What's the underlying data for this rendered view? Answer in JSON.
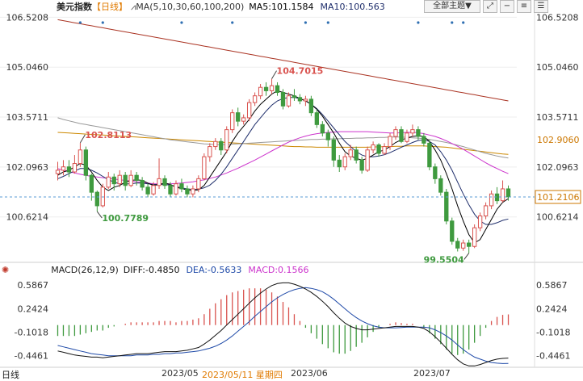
{
  "header": {
    "title": "美元指数",
    "period_tag": "【日线】",
    "ma_label": "MA(5,10,30,60,100,200)",
    "ma5_label": "MA5:101.1584",
    "ma10_label": "MA10:100.563",
    "topic_select": "全部主题▼",
    "icons": [
      "fullscreen-icon",
      "minimize-icon",
      "list-icon",
      "menu-icon"
    ]
  },
  "colors": {
    "up": "#d9534f",
    "down": "#3f9a3f",
    "ma5": "#000000",
    "ma10": "#1f2e6b",
    "ma30": "#cc33cc",
    "ma60": "#999999",
    "ma100": "#cc8800",
    "ma200": "#aa3322",
    "diff": "#111111",
    "dea": "#1f4aa8",
    "macd_pos": "#d9534f",
    "macd_neg": "#3f9a3f",
    "last_price": "#cc7700"
  },
  "macd_header": {
    "label": "MACD(26,12,9)",
    "diff": "DIFF:-0.4850",
    "dea": "DEA:-0.5633",
    "macd": "MACD:0.1566"
  },
  "footer": {
    "period": "日线",
    "date1": "2023/05",
    "cursor_date": "2023/05/11 星期四",
    "date2": "2023/06",
    "date3": "2023/07"
  },
  "chart_data": [
    {
      "type": "candlestick",
      "title": "美元指数",
      "ylim": [
        99.35,
        106.65
      ],
      "y_ticks": [
        "106.5208",
        "105.0460",
        "103.5711",
        "102.0963",
        "100.6214"
      ],
      "y_tick_values": [
        106.5208,
        105.046,
        103.5711,
        102.0963,
        100.6214
      ],
      "annotations": [
        {
          "text": "104.7015",
          "value": 104.7015,
          "kind": "high"
        },
        {
          "text": "102.8113",
          "value": 102.8113,
          "kind": "high"
        },
        {
          "text": "100.7789",
          "value": 100.7789,
          "kind": "low"
        },
        {
          "text": "99.5504",
          "value": 99.5504,
          "kind": "low"
        }
      ],
      "right_labels": [
        {
          "text": "102.9060",
          "value": 102.906
        },
        {
          "text": "101.2106",
          "value": 101.2106,
          "last_price": true
        }
      ],
      "candles": [
        [
          101.9,
          102.0,
          101.7,
          102.25
        ],
        [
          102.0,
          102.1,
          101.85,
          102.3
        ],
        [
          102.1,
          101.95,
          101.8,
          102.3
        ],
        [
          101.95,
          102.2,
          101.9,
          102.45
        ],
        [
          102.2,
          102.6,
          102.1,
          102.8113
        ],
        [
          102.6,
          101.85,
          101.7,
          102.7
        ],
        [
          101.85,
          101.35,
          101.1,
          101.9
        ],
        [
          101.35,
          100.95,
          100.7789,
          101.4
        ],
        [
          100.95,
          101.5,
          100.9,
          101.6
        ],
        [
          101.5,
          101.8,
          101.45,
          101.95
        ],
        [
          101.8,
          101.6,
          101.4,
          101.9
        ],
        [
          101.6,
          101.85,
          101.5,
          102.0
        ],
        [
          101.85,
          101.55,
          101.4,
          101.95
        ],
        [
          101.55,
          101.85,
          101.5,
          102.0
        ],
        [
          101.85,
          101.7,
          101.55,
          101.95
        ],
        [
          101.7,
          101.5,
          101.4,
          101.8
        ],
        [
          101.5,
          101.3,
          101.2,
          101.6
        ],
        [
          101.3,
          101.55,
          101.25,
          101.65
        ],
        [
          101.55,
          101.75,
          101.45,
          102.35
        ],
        [
          101.75,
          101.55,
          101.45,
          101.85
        ],
        [
          101.55,
          101.3,
          101.2,
          101.65
        ],
        [
          101.3,
          101.6,
          101.25,
          101.7
        ],
        [
          101.6,
          101.45,
          101.35,
          101.75
        ],
        [
          101.45,
          101.3,
          101.2,
          101.55
        ],
        [
          101.3,
          101.45,
          101.2,
          101.55
        ],
        [
          101.45,
          101.75,
          101.35,
          101.85
        ],
        [
          101.75,
          102.4,
          101.7,
          102.5
        ],
        [
          102.4,
          102.7,
          102.25,
          102.8
        ],
        [
          102.7,
          102.85,
          102.6,
          102.95
        ],
        [
          102.85,
          102.6,
          102.45,
          102.95
        ],
        [
          102.6,
          103.2,
          102.5,
          103.3
        ],
        [
          103.2,
          103.7,
          103.1,
          103.8
        ],
        [
          103.7,
          103.45,
          103.3,
          103.85
        ],
        [
          103.45,
          103.55,
          103.35,
          103.65
        ],
        [
          103.55,
          104.0,
          103.45,
          104.1
        ],
        [
          104.0,
          104.2,
          103.9,
          104.3
        ],
        [
          104.2,
          104.45,
          104.1,
          104.55
        ],
        [
          104.45,
          104.35,
          104.2,
          104.6
        ],
        [
          104.35,
          104.5,
          104.25,
          104.7015
        ],
        [
          104.5,
          104.3,
          104.2,
          104.6
        ],
        [
          104.3,
          103.9,
          103.8,
          104.4
        ],
        [
          103.9,
          104.2,
          103.85,
          104.3
        ],
        [
          104.2,
          104.15,
          104.05,
          104.4
        ],
        [
          104.15,
          104.05,
          103.95,
          104.25
        ],
        [
          104.05,
          104.1,
          103.9,
          104.2
        ],
        [
          104.1,
          103.7,
          103.6,
          104.2
        ],
        [
          103.7,
          103.35,
          103.25,
          103.8
        ],
        [
          103.35,
          103.1,
          103.0,
          103.45
        ],
        [
          103.1,
          102.9,
          102.7,
          103.2
        ],
        [
          102.9,
          102.3,
          102.1,
          103.0
        ],
        [
          102.3,
          102.1,
          101.95,
          102.45
        ],
        [
          102.1,
          102.4,
          102.0,
          102.5
        ],
        [
          102.4,
          102.6,
          102.3,
          102.75
        ],
        [
          102.6,
          102.3,
          102.2,
          102.7
        ],
        [
          102.3,
          102.0,
          101.9,
          102.4
        ],
        [
          102.0,
          102.6,
          101.95,
          102.7
        ],
        [
          102.6,
          102.75,
          102.5,
          102.85
        ],
        [
          102.75,
          102.5,
          102.4,
          102.8
        ],
        [
          102.5,
          102.7,
          102.45,
          102.8
        ],
        [
          102.7,
          103.0,
          102.6,
          103.1
        ],
        [
          103.0,
          103.2,
          102.9,
          103.3
        ],
        [
          103.2,
          102.85,
          102.8,
          103.3
        ],
        [
          102.85,
          103.1,
          102.8,
          103.2
        ],
        [
          103.1,
          103.2,
          103.0,
          103.35
        ],
        [
          103.2,
          103.0,
          102.9,
          103.3
        ],
        [
          103.0,
          102.8,
          102.7,
          103.1
        ],
        [
          102.8,
          102.1,
          102.0,
          102.9
        ],
        [
          102.1,
          101.75,
          101.6,
          102.2
        ],
        [
          101.75,
          101.35,
          101.25,
          101.85
        ],
        [
          101.35,
          100.5,
          100.4,
          101.45
        ],
        [
          100.5,
          99.9,
          99.8,
          100.6
        ],
        [
          99.9,
          99.7,
          99.6,
          100.0
        ],
        [
          99.7,
          99.85,
          99.62,
          99.95
        ],
        [
          99.85,
          99.75,
          99.5504,
          99.95
        ],
        [
          99.75,
          100.3,
          99.7,
          100.4
        ],
        [
          100.3,
          100.65,
          100.2,
          100.75
        ],
        [
          100.65,
          100.95,
          100.55,
          101.05
        ],
        [
          100.95,
          101.3,
          100.85,
          101.4
        ],
        [
          101.3,
          101.1,
          101.0,
          101.5
        ],
        [
          101.1,
          101.45,
          101.05,
          101.7
        ],
        [
          101.45,
          101.2106,
          101.1,
          101.55
        ]
      ],
      "ma5": [
        101.85,
        101.95,
        102.0,
        102.1,
        102.2,
        102.15,
        101.95,
        101.7,
        101.5,
        101.4,
        101.5,
        101.55,
        101.65,
        101.7,
        101.72,
        101.7,
        101.62,
        101.55,
        101.58,
        101.62,
        101.58,
        101.5,
        101.46,
        101.42,
        101.4,
        101.42,
        101.55,
        101.8,
        102.05,
        102.3,
        102.55,
        102.85,
        103.1,
        103.3,
        103.5,
        103.75,
        103.95,
        104.1,
        104.25,
        104.35,
        104.3,
        104.25,
        104.2,
        104.12,
        104.05,
        103.95,
        103.8,
        103.6,
        103.35,
        103.1,
        102.8,
        102.55,
        102.42,
        102.35,
        102.3,
        102.35,
        102.45,
        102.55,
        102.6,
        102.7,
        102.82,
        102.9,
        102.95,
        103.0,
        103.02,
        103.0,
        102.85,
        102.6,
        102.3,
        101.9,
        101.45,
        100.95,
        100.5,
        100.1,
        99.85,
        99.95,
        100.25,
        100.55,
        100.85,
        101.05,
        101.16
      ],
      "ma10": [
        101.75,
        101.82,
        101.9,
        101.98,
        102.05,
        102.05,
        102.0,
        101.92,
        101.82,
        101.72,
        101.65,
        101.6,
        101.6,
        101.6,
        101.62,
        101.62,
        101.6,
        101.58,
        101.58,
        101.58,
        101.56,
        101.52,
        101.48,
        101.45,
        101.43,
        101.44,
        101.48,
        101.56,
        101.7,
        101.88,
        102.1,
        102.35,
        102.6,
        102.85,
        103.1,
        103.35,
        103.55,
        103.75,
        103.92,
        104.05,
        104.12,
        104.15,
        104.15,
        104.12,
        104.05,
        103.95,
        103.82,
        103.65,
        103.45,
        103.25,
        103.05,
        102.85,
        102.7,
        102.55,
        102.45,
        102.4,
        102.4,
        102.42,
        102.46,
        102.52,
        102.6,
        102.68,
        102.75,
        102.82,
        102.88,
        102.9,
        102.85,
        102.75,
        102.55,
        102.3,
        102.0,
        101.65,
        101.3,
        100.98,
        100.7,
        100.5,
        100.4,
        100.4,
        100.45,
        100.52,
        100.56
      ],
      "ma30": [
        102.05,
        102.0,
        101.96,
        101.92,
        101.88,
        101.85,
        101.82,
        101.8,
        101.78,
        101.76,
        101.74,
        101.72,
        101.7,
        101.68,
        101.66,
        101.64,
        101.62,
        101.6,
        101.6,
        101.6,
        101.6,
        101.61,
        101.62,
        101.64,
        101.66,
        101.69,
        101.72,
        101.76,
        101.8,
        101.86,
        101.92,
        101.99,
        102.06,
        102.14,
        102.22,
        102.3,
        102.39,
        102.48,
        102.57,
        102.66,
        102.75,
        102.83,
        102.9,
        102.96,
        103.01,
        103.05,
        103.08,
        103.1,
        103.12,
        103.13,
        103.14,
        103.14,
        103.14,
        103.14,
        103.14,
        103.14,
        103.13,
        103.12,
        103.11,
        103.1,
        103.1,
        103.11,
        103.12,
        103.12,
        103.11,
        103.08,
        103.04,
        103.0,
        102.94,
        102.87,
        102.79,
        102.71,
        102.62,
        102.52,
        102.42,
        102.32,
        102.22,
        102.13,
        102.05,
        101.97,
        101.9
      ],
      "ma60": [
        103.55,
        103.5,
        103.46,
        103.42,
        103.38,
        103.35,
        103.32,
        103.29,
        103.26,
        103.23,
        103.2,
        103.17,
        103.14,
        103.11,
        103.08,
        103.05,
        103.02,
        102.99,
        102.96,
        102.93,
        102.9,
        102.88,
        102.86,
        102.84,
        102.82,
        102.8,
        102.78,
        102.77,
        102.76,
        102.76,
        102.76,
        102.77,
        102.78,
        102.79,
        102.8,
        102.81,
        102.82,
        102.83,
        102.84,
        102.85,
        102.86,
        102.87,
        102.88,
        102.89,
        102.9,
        102.91,
        102.91,
        102.92,
        102.92,
        102.93,
        102.93,
        102.94,
        102.94,
        102.95,
        102.95,
        102.96,
        102.96,
        102.97,
        102.97,
        102.98,
        102.98,
        102.98,
        102.97,
        102.96,
        102.95,
        102.93,
        102.91,
        102.88,
        102.85,
        102.82,
        102.78,
        102.74,
        102.7,
        102.65,
        102.6,
        102.55,
        102.5,
        102.46,
        102.42,
        102.39,
        102.36
      ],
      "ma100": [
        103.12,
        103.11,
        103.1,
        103.09,
        103.08,
        103.07,
        103.06,
        103.05,
        103.04,
        103.03,
        103.02,
        103.01,
        103.0,
        102.99,
        102.98,
        102.97,
        102.96,
        102.95,
        102.94,
        102.93,
        102.92,
        102.91,
        102.9,
        102.89,
        102.88,
        102.87,
        102.86,
        102.85,
        102.84,
        102.83,
        102.82,
        102.81,
        102.8,
        102.79,
        102.78,
        102.77,
        102.76,
        102.75,
        102.74,
        102.73,
        102.72,
        102.71,
        102.7,
        102.7,
        102.69,
        102.69,
        102.68,
        102.68,
        102.68,
        102.68,
        102.68,
        102.68,
        102.68,
        102.68,
        102.68,
        102.68,
        102.69,
        102.69,
        102.7,
        102.7,
        102.71,
        102.71,
        102.72,
        102.72,
        102.72,
        102.72,
        102.71,
        102.7,
        102.69,
        102.68,
        102.66,
        102.64,
        102.62,
        102.6,
        102.58,
        102.56,
        102.54,
        102.52,
        102.5,
        102.48,
        102.47
      ],
      "ma200": [
        106.45,
        106.42,
        106.39,
        106.36,
        106.33,
        106.3,
        106.27,
        106.24,
        106.21,
        106.18,
        106.15,
        106.12,
        106.09,
        106.06,
        106.03,
        106.0,
        105.97,
        105.94,
        105.91,
        105.88,
        105.85,
        105.82,
        105.79,
        105.76,
        105.73,
        105.7,
        105.67,
        105.64,
        105.61,
        105.58,
        105.55,
        105.52,
        105.49,
        105.46,
        105.43,
        105.4,
        105.37,
        105.34,
        105.31,
        105.28,
        105.25,
        105.22,
        105.19,
        105.16,
        105.13,
        105.1,
        105.07,
        105.04,
        105.01,
        104.98,
        104.95,
        104.92,
        104.89,
        104.86,
        104.83,
        104.8,
        104.77,
        104.74,
        104.71,
        104.68,
        104.65,
        104.62,
        104.59,
        104.56,
        104.53,
        104.5,
        104.47,
        104.44,
        104.41,
        104.38,
        104.35,
        104.32,
        104.29,
        104.26,
        104.23,
        104.2,
        104.17,
        104.14,
        104.11,
        104.08,
        104.05
      ]
    },
    {
      "type": "macd",
      "title": "MACD(26,12,9)",
      "ylim": [
        -0.62,
        0.72
      ],
      "y_ticks": [
        "0.5867",
        "0.2424",
        "-0.1018",
        "-0.4461"
      ],
      "y_tick_values": [
        0.5867,
        0.2424,
        -0.1018,
        -0.4461
      ],
      "diff": [
        -0.38,
        -0.4,
        -0.42,
        -0.44,
        -0.45,
        -0.46,
        -0.47,
        -0.47,
        -0.48,
        -0.47,
        -0.46,
        -0.45,
        -0.44,
        -0.43,
        -0.42,
        -0.42,
        -0.42,
        -0.41,
        -0.4,
        -0.39,
        -0.39,
        -0.39,
        -0.38,
        -0.37,
        -0.35,
        -0.33,
        -0.28,
        -0.22,
        -0.15,
        -0.08,
        0.0,
        0.08,
        0.16,
        0.24,
        0.32,
        0.4,
        0.47,
        0.53,
        0.58,
        0.61,
        0.62,
        0.62,
        0.6,
        0.57,
        0.53,
        0.48,
        0.42,
        0.35,
        0.27,
        0.18,
        0.1,
        0.03,
        -0.02,
        -0.05,
        -0.07,
        -0.07,
        -0.06,
        -0.05,
        -0.04,
        -0.03,
        -0.02,
        -0.02,
        -0.02,
        -0.02,
        -0.03,
        -0.05,
        -0.1,
        -0.17,
        -0.25,
        -0.34,
        -0.43,
        -0.51,
        -0.57,
        -0.6,
        -0.6,
        -0.58,
        -0.55,
        -0.52,
        -0.5,
        -0.49,
        -0.485
      ],
      "dea": [
        -0.3,
        -0.32,
        -0.34,
        -0.36,
        -0.38,
        -0.4,
        -0.42,
        -0.43,
        -0.44,
        -0.45,
        -0.45,
        -0.45,
        -0.45,
        -0.45,
        -0.44,
        -0.44,
        -0.44,
        -0.43,
        -0.43,
        -0.42,
        -0.42,
        -0.41,
        -0.41,
        -0.4,
        -0.39,
        -0.38,
        -0.36,
        -0.34,
        -0.31,
        -0.27,
        -0.22,
        -0.16,
        -0.09,
        -0.02,
        0.05,
        0.13,
        0.2,
        0.27,
        0.34,
        0.4,
        0.45,
        0.49,
        0.52,
        0.54,
        0.55,
        0.54,
        0.52,
        0.49,
        0.44,
        0.38,
        0.31,
        0.24,
        0.17,
        0.11,
        0.06,
        0.02,
        -0.01,
        -0.03,
        -0.04,
        -0.04,
        -0.04,
        -0.035,
        -0.03,
        -0.03,
        -0.03,
        -0.03,
        -0.04,
        -0.07,
        -0.11,
        -0.16,
        -0.22,
        -0.29,
        -0.36,
        -0.42,
        -0.47,
        -0.5,
        -0.53,
        -0.55,
        -0.56,
        -0.565,
        -0.5633
      ]
    }
  ]
}
